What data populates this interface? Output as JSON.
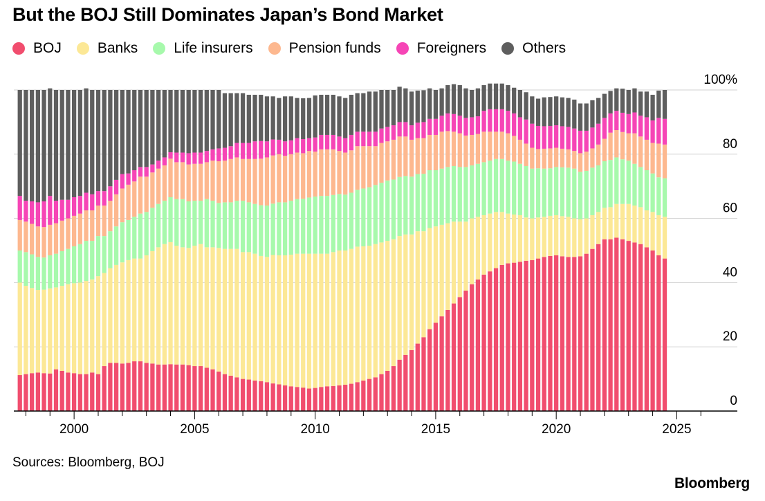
{
  "header": {
    "title": "But the BOJ Still Dominates Japan’s Bond Market"
  },
  "footer": {
    "source": "Sources: Bloomberg, BOJ",
    "brand": "Bloomberg"
  },
  "chart_data": {
    "type": "bar",
    "stacked": true,
    "title": "But the BOJ Still Dominates Japan’s Bond Market",
    "xlabel": "",
    "ylabel": "",
    "ylim": [
      0,
      100
    ],
    "grid": true,
    "legend": "top-left",
    "x_ticks": [
      "2000",
      "2005",
      "2010",
      "2015",
      "2020",
      "2025"
    ],
    "y_ticks": [
      "0",
      "20",
      "40",
      "60",
      "80",
      "100%"
    ],
    "x_start": 1997.75,
    "x_step": 0.25,
    "legend_labels": [
      "BOJ",
      "Banks",
      "Life insurers",
      "Pension funds",
      "Foreigners",
      "Others"
    ],
    "series": [
      {
        "name": "BOJ",
        "color": "#f14d6e",
        "values": [
          11.2,
          11.5,
          11.8,
          12,
          11.8,
          11.7,
          13,
          12.5,
          12,
          11.8,
          11.5,
          11.5,
          12,
          11.5,
          14,
          15,
          15,
          14.8,
          15,
          15.5,
          15.5,
          15,
          14.8,
          14.5,
          14.5,
          14.6,
          14.5,
          14.5,
          14.3,
          14,
          14,
          13.5,
          13,
          12.3,
          11.5,
          11,
          10.5,
          10,
          9.8,
          9.5,
          9.3,
          9,
          8.6,
          8.3,
          8,
          7.7,
          7.5,
          7.3,
          7,
          7.2,
          7.5,
          7.7,
          7.8,
          8,
          8.2,
          8.5,
          9,
          9.5,
          10,
          10.5,
          11.5,
          12.5,
          14,
          16,
          17.5,
          19,
          21,
          23,
          25.5,
          27.5,
          29.5,
          31.5,
          33.5,
          35.5,
          37.5,
          39.5,
          41,
          42.5,
          43.5,
          44.5,
          45.5,
          46,
          46.2,
          46.5,
          46.8,
          47,
          47.5,
          48,
          48.3,
          48.5,
          48.2,
          48,
          48,
          48.2,
          49,
          50.5,
          52,
          53.5,
          53.5,
          54,
          53.5,
          53,
          52.5,
          52,
          51,
          50,
          48.5,
          47.5
        ]
      },
      {
        "name": "Banks",
        "color": "#fce896",
        "values": [
          28.8,
          27.5,
          26.5,
          25.7,
          26,
          26.5,
          25.5,
          26.5,
          27.5,
          28,
          28.5,
          29,
          29,
          30.5,
          29,
          29.5,
          30.5,
          31.5,
          32,
          32,
          32,
          33.5,
          35,
          36.5,
          37.5,
          38,
          37,
          36.5,
          36.5,
          37.5,
          38,
          37.5,
          38,
          38.5,
          39,
          39.5,
          40,
          39.5,
          39.7,
          39.5,
          39,
          39,
          40,
          40.2,
          40.5,
          41,
          41.5,
          41.7,
          42,
          41.8,
          41.5,
          41.3,
          41.7,
          42,
          41.8,
          42,
          42.2,
          41.8,
          41.5,
          41.5,
          41,
          40.5,
          39.5,
          38.5,
          37.5,
          36,
          35,
          33,
          31.5,
          30,
          28.5,
          27,
          25.5,
          23.5,
          21.5,
          20.5,
          19.5,
          18.5,
          18,
          17.5,
          16.5,
          15.5,
          15,
          14.5,
          13.5,
          13,
          12.8,
          12.5,
          12.5,
          12.5,
          12.5,
          12.5,
          12,
          11.5,
          11,
          10.5,
          10,
          9.8,
          10,
          10.5,
          11,
          11.5,
          11.5,
          11.5,
          11.5,
          12,
          12.5,
          13
        ]
      },
      {
        "name": "Life insurers",
        "color": "#a7f9ac",
        "values": [
          10,
          10.5,
          10.5,
          10.3,
          10,
          10.3,
          10.5,
          10.8,
          11,
          11.5,
          12,
          12.5,
          12,
          12.5,
          11.5,
          11.5,
          12,
          12.5,
          12.5,
          13,
          14,
          13.5,
          13.5,
          13.5,
          13.5,
          14,
          14.5,
          15,
          14.5,
          14,
          13.5,
          15,
          14.5,
          14,
          14.5,
          14.5,
          15,
          16,
          15.5,
          15.5,
          15.8,
          16,
          16,
          16.5,
          16.5,
          16.8,
          17,
          17.1,
          17.5,
          17.8,
          18,
          18,
          17.8,
          17.6,
          17.4,
          17.5,
          17.7,
          18,
          18.2,
          18.4,
          18.6,
          18.8,
          18.6,
          18.4,
          18.2,
          18,
          17.8,
          17.9,
          18,
          17.5,
          17.5,
          17.5,
          17.3,
          17,
          17,
          16.5,
          16.5,
          16.5,
          16.5,
          16.5,
          16.5,
          16.5,
          16.5,
          16,
          16,
          15.5,
          15.3,
          15,
          14.8,
          15,
          15.2,
          15.3,
          15.5,
          14.8,
          14.8,
          14.8,
          14.5,
          14.5,
          14.7,
          14.5,
          13.9,
          13.5,
          13,
          12.5,
          12.5,
          12,
          11.8,
          12
        ]
      },
      {
        "name": "Pension funds",
        "color": "#fdb88f",
        "values": [
          9.5,
          9.5,
          9.5,
          9.5,
          9.5,
          9.5,
          9.5,
          9.5,
          9.5,
          9.5,
          9.5,
          9.5,
          9.5,
          9.5,
          9.5,
          9.5,
          10,
          10.5,
          11,
          11,
          11.5,
          11,
          11,
          11,
          11,
          12,
          11.5,
          11.5,
          11.5,
          11.5,
          11.5,
          11.5,
          12.5,
          13,
          13,
          13.5,
          13.5,
          13,
          13.5,
          14,
          14.5,
          15,
          15,
          15,
          14.5,
          14.5,
          14.5,
          14.2,
          14.5,
          14,
          14.5,
          14.5,
          14.2,
          13.4,
          13.1,
          13.2,
          13.6,
          13.2,
          12.8,
          12.1,
          12.4,
          12.2,
          12.4,
          12.6,
          12.3,
          11.5,
          11.2,
          11.1,
          11,
          11,
          11.5,
          11.2,
          10.7,
          10.5,
          9.8,
          9.5,
          9.3,
          9.5,
          9,
          8.5,
          8.5,
          8.5,
          8,
          7.5,
          7,
          6.5,
          6,
          6.2,
          6.2,
          6,
          5.8,
          5.7,
          5.5,
          5.8,
          6,
          6,
          6.5,
          7,
          8.5,
          8.5,
          8.5,
          8.5,
          9.5,
          9.5,
          9.5,
          9.5,
          10.5,
          10.5
        ]
      },
      {
        "name": "Foreigners",
        "color": "#f645b6",
        "values": [
          7.5,
          6.5,
          7,
          7.5,
          8,
          9,
          7,
          6.5,
          5.8,
          5.8,
          5.5,
          5.5,
          5,
          4.5,
          4.5,
          4.5,
          4.5,
          4.5,
          3.5,
          3.5,
          3,
          3,
          2.5,
          2.5,
          2.5,
          2,
          3,
          3,
          3.5,
          3.5,
          3.5,
          3.5,
          3.5,
          4,
          4,
          4,
          4.5,
          5,
          5,
          5.5,
          5.5,
          5,
          5,
          4.5,
          4.5,
          4.3,
          4.5,
          4.4,
          4,
          4.4,
          4.5,
          4.5,
          4.5,
          4.5,
          4.5,
          4.8,
          4.5,
          4.5,
          4.5,
          4.5,
          4.5,
          4.5,
          4.5,
          4.5,
          4.5,
          4.5,
          4.8,
          5,
          5,
          5,
          5,
          5.5,
          5.5,
          5.5,
          5.5,
          5.5,
          5.5,
          6.5,
          7,
          7,
          7,
          7,
          7,
          7,
          7.5,
          7.5,
          7.2,
          7,
          7,
          7,
          7,
          7,
          7,
          7,
          6.5,
          6.5,
          6.5,
          6.5,
          6,
          6,
          6,
          6,
          6.5,
          6.5,
          7,
          7,
          8,
          8
        ]
      },
      {
        "name": "Others",
        "color": "#5e5e5e",
        "values": [
          33,
          34.5,
          34.7,
          35,
          34.7,
          33.5,
          34.5,
          34.2,
          34.2,
          33.4,
          33,
          32.5,
          32.5,
          31.5,
          31.5,
          30,
          28,
          26.2,
          26,
          25,
          24,
          24,
          23.2,
          22,
          21,
          19.4,
          19.5,
          19.5,
          19.7,
          19.5,
          19.5,
          19,
          18.5,
          18.2,
          17,
          16.5,
          15.5,
          15.5,
          15,
          14.5,
          14.4,
          14,
          13.4,
          13,
          14,
          13.7,
          12.5,
          12.7,
          12.5,
          13.1,
          12.5,
          12.5,
          12.5,
          12.5,
          12.5,
          12.5,
          12,
          12,
          12.5,
          12.5,
          12,
          11.5,
          11,
          11,
          10.5,
          10.5,
          10,
          9.9,
          9.5,
          9,
          8.5,
          8.8,
          9.3,
          9.5,
          9.2,
          8.5,
          8.7,
          8,
          8,
          8,
          8,
          8,
          8,
          8.5,
          8.5,
          8.5,
          8.5,
          9,
          9,
          9,
          9,
          9,
          9,
          8.5,
          8.5,
          8.5,
          8,
          7.5,
          7,
          7,
          7.5,
          7.5,
          7.5,
          7.5,
          8,
          8,
          8.5,
          9
        ]
      }
    ]
  }
}
